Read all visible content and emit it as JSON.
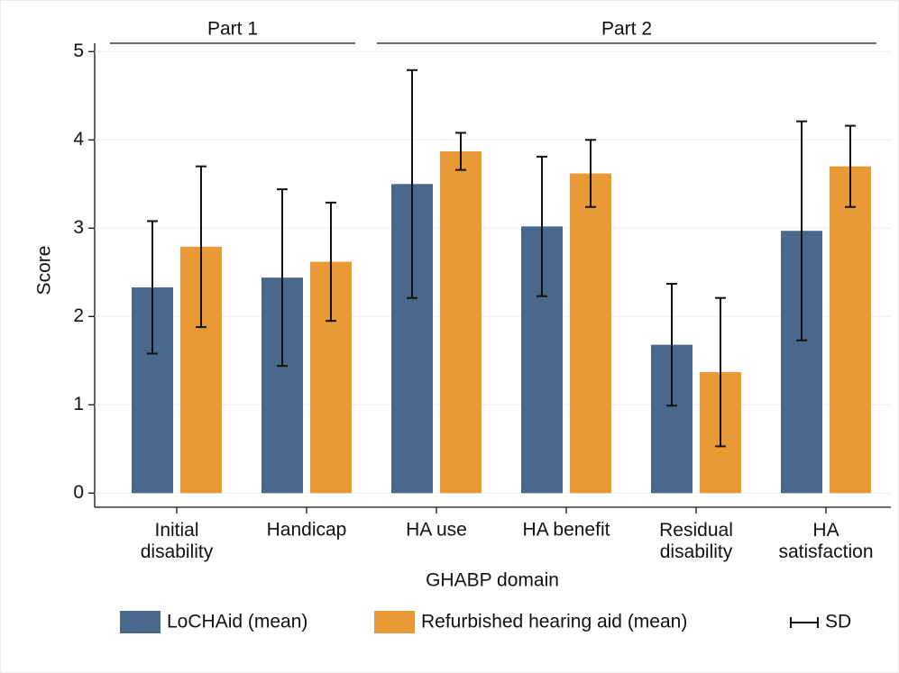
{
  "chart_data": {
    "type": "bar",
    "categories": [
      "Initial\ndisability",
      "Handicap",
      "HA use",
      "HA benefit",
      "Residual\ndisability",
      "HA\nsatisfaction"
    ],
    "series": [
      {
        "name": "LoCHAid (mean)",
        "color": "#48698c",
        "values": [
          2.33,
          2.44,
          3.5,
          3.02,
          1.68,
          2.97
        ],
        "errors": [
          0.75,
          1.0,
          1.29,
          0.79,
          0.69,
          1.24
        ]
      },
      {
        "name": "Refurbished hearing aid (mean)",
        "color": "#e99a36",
        "values": [
          2.79,
          2.62,
          3.87,
          3.62,
          1.37,
          3.7
        ],
        "errors": [
          0.91,
          0.67,
          0.21,
          0.38,
          0.84,
          0.46
        ]
      }
    ],
    "error_label": "SD",
    "groups": [
      {
        "label": "Part 1",
        "size": 2
      },
      {
        "label": "Part 2",
        "size": 4
      }
    ],
    "ylabel": "Score",
    "xlabel": "GHABP domain",
    "ylim": [
      -0.16,
      5.38
    ],
    "yticks": [
      0,
      1,
      2,
      3,
      4,
      5
    ],
    "grid": true
  }
}
